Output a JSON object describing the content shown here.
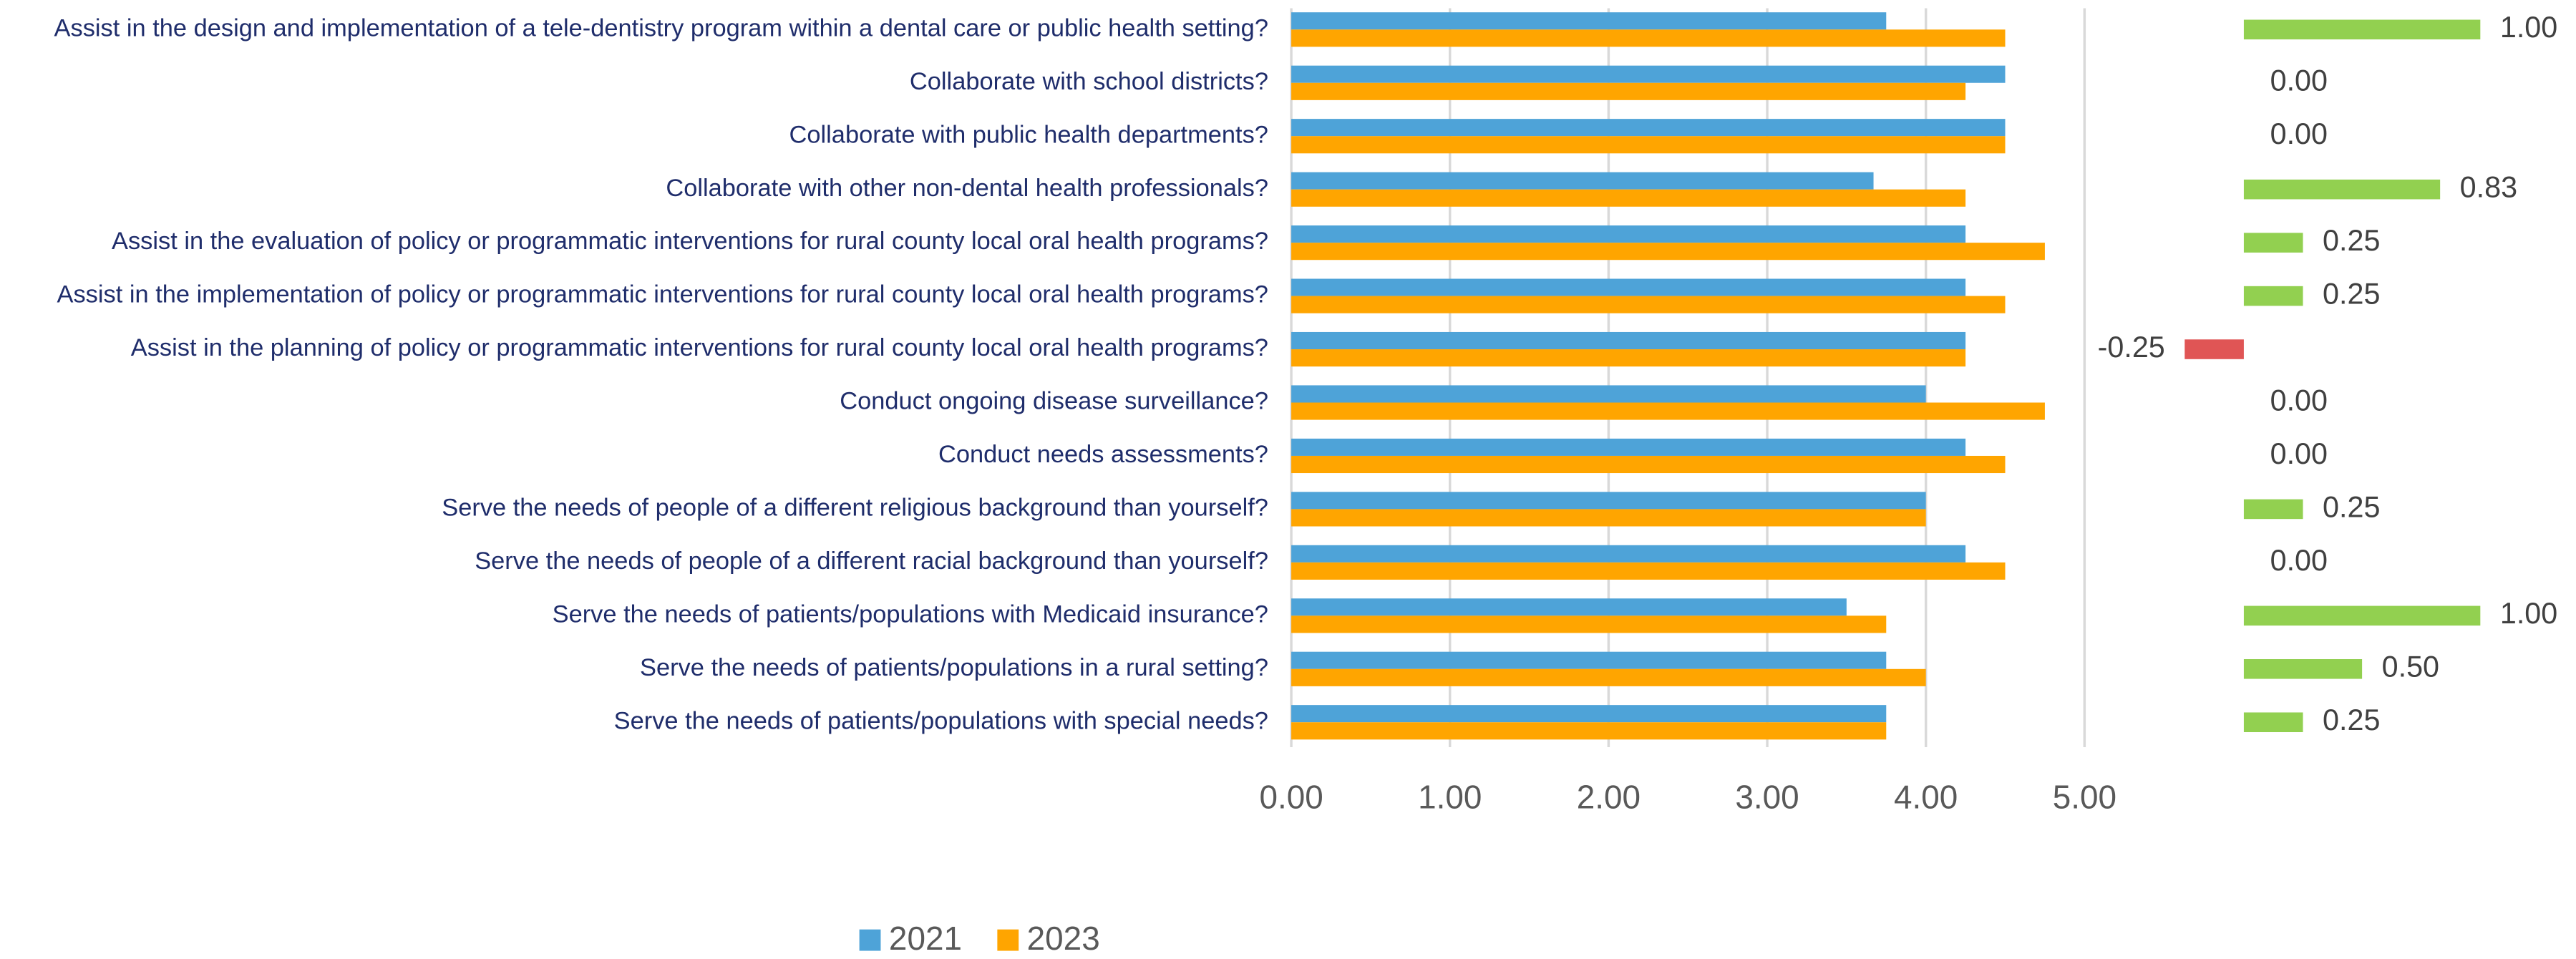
{
  "chart_data": [
    {
      "type": "hbar",
      "categories": [
        "Assist in the design and implementation of a tele-dentistry program within a dental care or public health setting?",
        "Collaborate with school districts?",
        "Collaborate with public health departments?",
        "Collaborate with other non-dental health professionals?",
        "Assist in the evaluation of policy or programmatic interventions for rural county local oral health programs?",
        "Assist in the implementation of policy or programmatic interventions for rural county local oral health programs?",
        "Assist in the planning of policy or programmatic interventions for rural county local oral health programs?",
        "Conduct ongoing disease surveillance?",
        "Conduct needs assessments?",
        "Serve the needs of people of a different religious background than yourself?",
        "Serve the needs of people of a different racial background than yourself?",
        "Serve the needs of patients/populations with Medicaid insurance?",
        "Serve the needs of patients/populations in a rural setting?",
        "Serve the needs of patients/populations with special needs?"
      ],
      "series": [
        {
          "name": "2021",
          "color": "#4ea3d8",
          "values": [
            3.75,
            4.5,
            4.5,
            3.67,
            4.25,
            4.25,
            4.25,
            4.0,
            4.25,
            4.0,
            4.25,
            3.5,
            3.75,
            3.75
          ]
        },
        {
          "name": "2023",
          "color": "#ffa500",
          "values": [
            4.5,
            4.25,
            4.5,
            4.25,
            4.75,
            4.5,
            4.25,
            4.75,
            4.5,
            4.0,
            4.5,
            3.75,
            4.0,
            3.75
          ]
        }
      ],
      "xlim": [
        0,
        5
      ],
      "xticks": [
        {
          "value": 0,
          "label": "0.00"
        },
        {
          "value": 1,
          "label": "1.00"
        },
        {
          "value": 2,
          "label": "2.00"
        },
        {
          "value": 3,
          "label": "3.00"
        },
        {
          "value": 4,
          "label": "4.00"
        },
        {
          "value": 5,
          "label": "5.00"
        }
      ],
      "grid": true
    },
    {
      "type": "hbar-diff",
      "values": [
        1,
        0,
        0,
        0.83,
        0.25,
        0.25,
        -0.25,
        0,
        0,
        0.25,
        0,
        1,
        0.5,
        0.25
      ],
      "value_labels": [
        "1.00",
        "0.00",
        "0.00",
        "0.83",
        "0.25",
        "0.25",
        "-0.25",
        "0.00",
        "0.00",
        "0.25",
        "0.00",
        "1.00",
        "0.50",
        "0.25"
      ],
      "color": "#92d050",
      "negative_color": "#e05555"
    }
  ]
}
